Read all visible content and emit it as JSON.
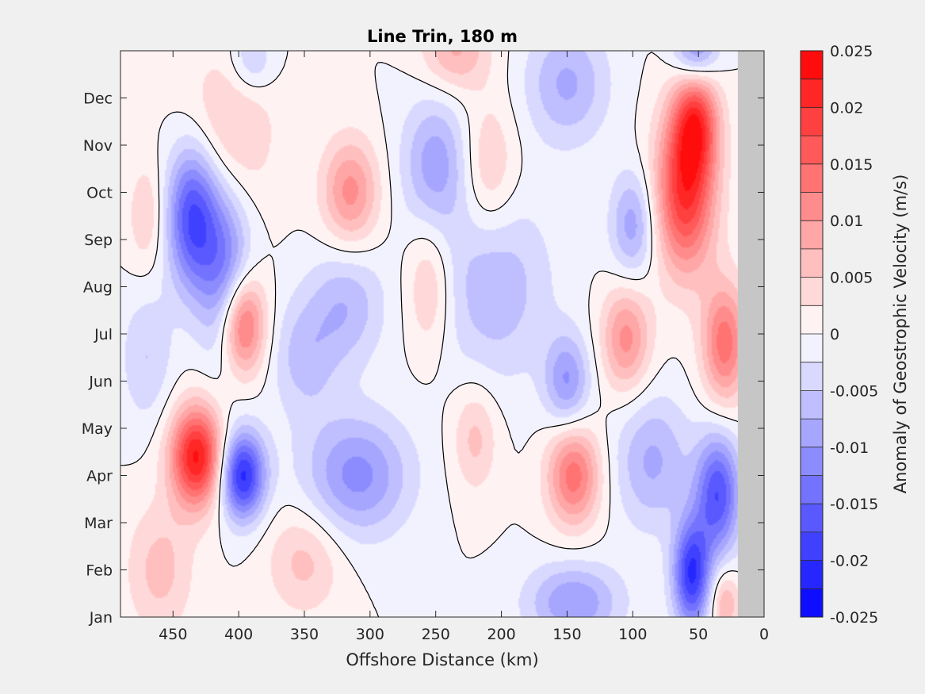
{
  "chart_data": {
    "type": "heatmap",
    "title": "Line Trin, 180 m",
    "xlabel": "Offshore Distance (km)",
    "colorbar_label": "Anomaly of Geostrophic Velocity (m/s)",
    "x_range": [
      490,
      0
    ],
    "x_ticks": [
      450,
      400,
      350,
      300,
      250,
      200,
      150,
      100,
      50,
      0
    ],
    "y_labels": [
      "Jan",
      "Feb",
      "Mar",
      "Apr",
      "May",
      "Jun",
      "Jul",
      "Aug",
      "Sep",
      "Oct",
      "Nov",
      "Dec"
    ],
    "y_range_months": [
      1,
      13.0
    ],
    "land_mask_x_km": [
      0,
      20
    ],
    "colorbar_ticks": [
      "0.025",
      "0.02",
      "0.015",
      "0.01",
      "0.005",
      "0",
      "-0.005",
      "-0.01",
      "-0.015",
      "-0.02",
      "-0.025"
    ],
    "color_range": [
      -0.025,
      0.025
    ],
    "levels": 20,
    "zero_contour": true,
    "colormap": {
      "negative": "#0000ff",
      "zero": "#ffffff",
      "positive": "#ff0000"
    },
    "features": [
      {
        "x": 432,
        "month": 4.4,
        "amp": 0.023,
        "sx": 14,
        "sy": 0.75
      },
      {
        "x": 397,
        "month": 4.0,
        "amp": -0.021,
        "sx": 12,
        "sy": 0.65
      },
      {
        "x": 435,
        "month": 9.5,
        "amp": -0.018,
        "sx": 14,
        "sy": 1.1
      },
      {
        "x": 410,
        "month": 8.3,
        "amp": -0.012,
        "sx": 14,
        "sy": 1.3
      },
      {
        "x": 397,
        "month": 7.2,
        "amp": 0.017,
        "sx": 12,
        "sy": 0.75
      },
      {
        "x": 315,
        "month": 10.0,
        "amp": 0.011,
        "sx": 15,
        "sy": 0.8
      },
      {
        "x": 408,
        "month": 11.3,
        "amp": 0.006,
        "sx": 25,
        "sy": 1.2
      },
      {
        "x": 390,
        "month": 12.8,
        "amp": -0.006,
        "sx": 12,
        "sy": 0.5
      },
      {
        "x": 310,
        "month": 4.0,
        "amp": -0.011,
        "sx": 28,
        "sy": 0.9
      },
      {
        "x": 318,
        "month": 7.6,
        "amp": -0.007,
        "sx": 20,
        "sy": 0.9
      },
      {
        "x": 250,
        "month": 10.6,
        "amp": -0.009,
        "sx": 18,
        "sy": 1.0
      },
      {
        "x": 235,
        "month": 13.0,
        "amp": 0.008,
        "sx": 18,
        "sy": 0.6
      },
      {
        "x": 205,
        "month": 8.0,
        "amp": -0.007,
        "sx": 30,
        "sy": 1.4
      },
      {
        "x": 210,
        "month": 10.5,
        "amp": 0.006,
        "sx": 15,
        "sy": 1.0
      },
      {
        "x": 255,
        "month": 8.0,
        "amp": 0.006,
        "sx": 12,
        "sy": 1.0
      },
      {
        "x": 220,
        "month": 4.8,
        "amp": 0.006,
        "sx": 12,
        "sy": 0.8
      },
      {
        "x": 145,
        "month": 4.0,
        "amp": 0.014,
        "sx": 14,
        "sy": 0.75
      },
      {
        "x": 150,
        "month": 6.0,
        "amp": -0.01,
        "sx": 12,
        "sy": 0.7
      },
      {
        "x": 145,
        "month": 1.3,
        "amp": -0.01,
        "sx": 25,
        "sy": 0.6
      },
      {
        "x": 150,
        "month": 12.3,
        "amp": -0.008,
        "sx": 22,
        "sy": 0.9
      },
      {
        "x": 105,
        "month": 6.9,
        "amp": 0.011,
        "sx": 13,
        "sy": 0.8
      },
      {
        "x": 100,
        "month": 9.3,
        "amp": -0.009,
        "sx": 12,
        "sy": 0.8
      },
      {
        "x": 60,
        "month": 10.0,
        "amp": 0.02,
        "sx": 16,
        "sy": 1.2
      },
      {
        "x": 52,
        "month": 11.5,
        "amp": 0.016,
        "sx": 12,
        "sy": 0.8
      },
      {
        "x": 85,
        "month": 4.3,
        "amp": -0.008,
        "sx": 20,
        "sy": 1.0
      },
      {
        "x": 30,
        "month": 6.8,
        "amp": 0.014,
        "sx": 12,
        "sy": 0.9
      },
      {
        "x": 35,
        "month": 3.6,
        "amp": -0.017,
        "sx": 12,
        "sy": 0.9
      },
      {
        "x": 55,
        "month": 1.9,
        "amp": -0.02,
        "sx": 10,
        "sy": 0.8
      },
      {
        "x": 52,
        "month": 13.0,
        "amp": -0.012,
        "sx": 12,
        "sy": 0.5
      },
      {
        "x": 30,
        "month": 1.3,
        "amp": 0.008,
        "sx": 8,
        "sy": 0.5
      },
      {
        "x": 470,
        "month": 9.5,
        "amp": 0.005,
        "sx": 10,
        "sy": 0.8
      },
      {
        "x": 460,
        "month": 2.0,
        "amp": 0.006,
        "sx": 18,
        "sy": 1.0
      },
      {
        "x": 470,
        "month": 6.5,
        "amp": -0.005,
        "sx": 14,
        "sy": 1.0
      },
      {
        "x": 350,
        "month": 2.2,
        "amp": 0.006,
        "sx": 20,
        "sy": 0.8
      },
      {
        "x": 350,
        "month": 6.5,
        "amp": -0.006,
        "sx": 18,
        "sy": 0.9
      }
    ]
  }
}
